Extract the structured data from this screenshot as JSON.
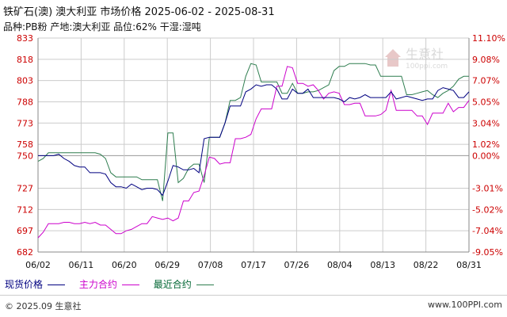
{
  "header": {
    "title": "铁矿石(澳) 澳大利亚 市场价格 2025-06-02 - 2025-08-31",
    "subtitle": "品种:PB粉 产地:澳大利亚 品位:62% 干湿:湿吨"
  },
  "legend": {
    "spot": "现货价格",
    "main": "主力合约",
    "latest": "最近合约"
  },
  "footer": {
    "copyright": "© 2025.09 生意社",
    "url": "www.100PPI.com"
  },
  "watermark": {
    "text": "生意社",
    "url": "100ppi.com"
  },
  "colors": {
    "spot": "#000080",
    "main": "#cc00cc",
    "latest": "#2e7d4f",
    "grid": "#cccccc",
    "axis_red": "#cc0000"
  },
  "chart_data": {
    "type": "line",
    "title": "铁矿石(澳) 澳大利亚 市场价格 2025-06-02 - 2025-08-31",
    "x_ticks": [
      "06/02",
      "06/11",
      "06/20",
      "06/29",
      "07/08",
      "07/17",
      "07/26",
      "08/04",
      "08/13",
      "08/22",
      "08/31"
    ],
    "y_left_ticks": [
      833,
      818,
      803,
      788,
      773,
      758,
      750,
      727,
      712,
      697,
      682
    ],
    "y_right_ticks": [
      "11.10%",
      "9.08%",
      "7.07%",
      "5.05%",
      "3.04%",
      "1.02%",
      "0.00%",
      "-3.01%",
      "-5.02%",
      "-7.04%",
      "-9.05%"
    ],
    "ylim": [
      682,
      833
    ],
    "baseline": 750,
    "series": [
      {
        "name": "现货价格",
        "key": "spot",
        "values": [
          750,
          750,
          750,
          750,
          751,
          748,
          746,
          743,
          742,
          742,
          738,
          738,
          738,
          737,
          731,
          728,
          728,
          727,
          730,
          728,
          726,
          727,
          727,
          726,
          722,
          732,
          743,
          742,
          740,
          740,
          741,
          738,
          762,
          763,
          763,
          763,
          773,
          785,
          785,
          785,
          795,
          797,
          800,
          799,
          800,
          800,
          797,
          790,
          790,
          797,
          794,
          794,
          797,
          791,
          791,
          791,
          791,
          791,
          790,
          788,
          791,
          790,
          791,
          793,
          791,
          791,
          791,
          791,
          795,
          790,
          791,
          792,
          791,
          790,
          789,
          790,
          790,
          796,
          798,
          797,
          796,
          791,
          791,
          795
        ]
      },
      {
        "name": "主力合约",
        "key": "main",
        "values": [
          692,
          696,
          702,
          702,
          702,
          703,
          703,
          702,
          702,
          703,
          702,
          703,
          701,
          701,
          698,
          695,
          695,
          697,
          698,
          700,
          702,
          702,
          707,
          706,
          705,
          706,
          704,
          706,
          718,
          718,
          724,
          725,
          736,
          749,
          748,
          744,
          745,
          745,
          762,
          762,
          763,
          765,
          776,
          783,
          783,
          783,
          799,
          799,
          813,
          812,
          801,
          801,
          799,
          800,
          796,
          790,
          794,
          795,
          794,
          786,
          786,
          787,
          787,
          778,
          778,
          778,
          779,
          782,
          796,
          782,
          782,
          782,
          782,
          778,
          778,
          772,
          780,
          780,
          780,
          787,
          781,
          784,
          784,
          789
        ]
      },
      {
        "name": "最近合约",
        "key": "latest",
        "values": [
          746,
          748,
          752,
          752,
          752,
          752,
          752,
          752,
          752,
          752,
          752,
          752,
          751,
          748,
          738,
          735,
          735,
          735,
          735,
          735,
          733,
          733,
          733,
          733,
          718,
          766,
          766,
          731,
          734,
          741,
          744,
          744,
          731,
          763,
          763,
          763,
          773,
          789,
          789,
          791,
          806,
          815,
          814,
          802,
          802,
          802,
          802,
          794,
          794,
          801,
          794,
          794,
          795,
          795,
          796,
          798,
          800,
          810,
          813,
          813,
          815,
          815,
          815,
          815,
          814,
          814,
          806,
          806,
          806,
          806,
          806,
          793,
          793,
          794,
          795,
          796,
          793,
          791,
          794,
          796,
          799,
          804,
          806,
          806
        ]
      }
    ],
    "grid": true,
    "legend_position": "bottom-left"
  }
}
